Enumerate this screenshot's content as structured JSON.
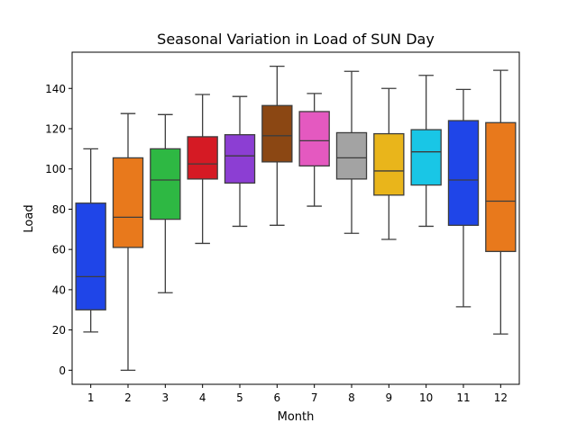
{
  "chart_data": {
    "type": "box",
    "title": "Seasonal Variation in Load of SUN Day",
    "xlabel": "Month",
    "ylabel": "Load",
    "categories": [
      "1",
      "2",
      "3",
      "4",
      "5",
      "6",
      "7",
      "8",
      "9",
      "10",
      "11",
      "12"
    ],
    "y_ticks": [
      0,
      20,
      40,
      60,
      80,
      100,
      120,
      140
    ],
    "y_tick_labels": [
      "0",
      "20",
      "40",
      "60",
      "80",
      "100",
      "120",
      "140"
    ],
    "ylim": [
      -7,
      158
    ],
    "grid": false,
    "boxes": [
      {
        "category": "1",
        "min": 19,
        "q1": 30,
        "median": 46.5,
        "q3": 83,
        "max": 110,
        "color": "#1f45e8"
      },
      {
        "category": "2",
        "min": 0,
        "q1": 61,
        "median": 76,
        "q3": 105.5,
        "max": 127.5,
        "color": "#e8791c"
      },
      {
        "category": "3",
        "min": 38.5,
        "q1": 75,
        "median": 94.5,
        "q3": 110,
        "max": 127,
        "color": "#2eb843"
      },
      {
        "category": "4",
        "min": 63,
        "q1": 95,
        "median": 102.5,
        "q3": 116,
        "max": 137,
        "color": "#d51a24"
      },
      {
        "category": "5",
        "min": 71.5,
        "q1": 93,
        "median": 106.5,
        "q3": 117,
        "max": 136,
        "color": "#8c3ed3"
      },
      {
        "category": "6",
        "min": 72,
        "q1": 103.5,
        "median": 116.5,
        "q3": 131.5,
        "max": 151,
        "color": "#8b4713"
      },
      {
        "category": "7",
        "min": 81.5,
        "q1": 101.5,
        "median": 114,
        "q3": 128.5,
        "max": 137.5,
        "color": "#e459c0"
      },
      {
        "category": "8",
        "min": 68,
        "q1": 95,
        "median": 105.5,
        "q3": 118,
        "max": 148.5,
        "color": "#a3a3a3"
      },
      {
        "category": "9",
        "min": 65,
        "q1": 87,
        "median": 99,
        "q3": 117.5,
        "max": 140,
        "color": "#e9b51b"
      },
      {
        "category": "10",
        "min": 71.5,
        "q1": 92,
        "median": 108.5,
        "q3": 119.5,
        "max": 146.5,
        "color": "#19c6e6"
      },
      {
        "category": "11",
        "min": 31.5,
        "q1": 72,
        "median": 94.5,
        "q3": 124,
        "max": 139.5,
        "color": "#1f45e8"
      },
      {
        "category": "12",
        "min": 18,
        "q1": 59,
        "median": 84,
        "q3": 123,
        "max": 149,
        "color": "#e8791c"
      }
    ]
  }
}
